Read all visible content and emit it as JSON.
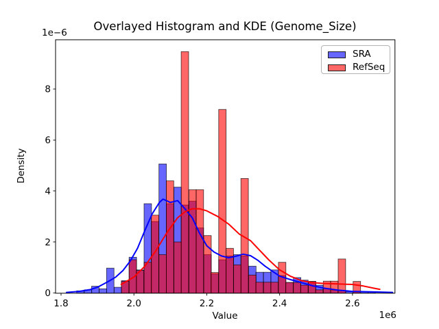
{
  "title": "Overlayed Histogram and KDE (Genome_Size)",
  "axes": {
    "xlabel": "Value",
    "ylabel": "Density",
    "x_offset_label": "1e6",
    "y_offset_label": "1e−6",
    "x_ticks": {
      "values": [
        1.8,
        2.0,
        2.2,
        2.4,
        2.6
      ],
      "labels": [
        "1.8",
        "2.0",
        "2.2",
        "2.4",
        "2.6"
      ]
    },
    "y_ticks": {
      "values": [
        0,
        2,
        4,
        6,
        8
      ],
      "labels": [
        "0",
        "2",
        "4",
        "6",
        "8"
      ]
    },
    "xlim": [
      1.783,
      2.717
    ],
    "ylim": [
      0,
      9.93
    ],
    "grid": false
  },
  "legend": {
    "position": "upper right",
    "items": [
      {
        "label": "SRA",
        "color": "rgba(0,0,255,0.6)"
      },
      {
        "label": "RefSeq",
        "color": "rgba(255,0,0,0.6)"
      }
    ]
  },
  "chart_data": {
    "type": "bar",
    "subtype": "overlaid histogram with KDE curves",
    "title": "Overlayed Histogram and KDE (Genome_Size)",
    "xlabel": "Value",
    "ylabel": "Density",
    "x_unit": "×1e6",
    "y_unit": "×1e-6",
    "bin_width": 0.0205,
    "series": [
      {
        "name": "SRA",
        "bar_fill": "rgba(0,0,255,0.6)",
        "edge_color": "rgba(0,0,0,0.75)",
        "line_color": "#0000ff",
        "bin_centers": [
          1.853,
          1.874,
          1.894,
          1.915,
          1.935,
          1.956,
          1.976,
          1.997,
          2.017,
          2.038,
          2.058,
          2.079,
          2.099,
          2.12,
          2.14,
          2.161,
          2.181,
          2.202,
          2.222,
          2.243,
          2.263,
          2.284,
          2.304,
          2.325,
          2.345,
          2.366,
          2.386,
          2.407,
          2.427,
          2.448,
          2.468,
          2.489,
          2.509,
          2.53,
          2.55,
          2.571,
          2.591,
          2.612,
          2.632,
          2.653
        ],
        "bin_heights": [
          0.08,
          0.12,
          0.26,
          0.16,
          0.97,
          0.22,
          0.48,
          1.4,
          0.9,
          3.5,
          2.8,
          5.06,
          3.5,
          4.15,
          3.45,
          3.6,
          2.55,
          1.5,
          0.75,
          1.3,
          1.45,
          1.5,
          1.45,
          1.05,
          0.81,
          0.81,
          0.9,
          0.68,
          0.41,
          0.6,
          0.5,
          0.45,
          0.3,
          0.17,
          0.1,
          0.08,
          0.05,
          0.05,
          0.05,
          0.04
        ],
        "kde": [
          [
            1.815,
            0.02
          ],
          [
            1.85,
            0.06
          ],
          [
            1.88,
            0.13
          ],
          [
            1.9,
            0.22
          ],
          [
            1.93,
            0.45
          ],
          [
            1.95,
            0.62
          ],
          [
            1.97,
            0.88
          ],
          [
            1.99,
            1.25
          ],
          [
            2.01,
            1.75
          ],
          [
            2.03,
            2.45
          ],
          [
            2.05,
            3.1
          ],
          [
            2.07,
            3.55
          ],
          [
            2.08,
            3.68
          ],
          [
            2.1,
            3.55
          ],
          [
            2.12,
            3.62
          ],
          [
            2.14,
            3.3
          ],
          [
            2.16,
            2.95
          ],
          [
            2.18,
            2.35
          ],
          [
            2.2,
            1.85
          ],
          [
            2.22,
            1.6
          ],
          [
            2.24,
            1.45
          ],
          [
            2.26,
            1.38
          ],
          [
            2.28,
            1.44
          ],
          [
            2.3,
            1.52
          ],
          [
            2.32,
            1.46
          ],
          [
            2.34,
            1.28
          ],
          [
            2.36,
            1.05
          ],
          [
            2.38,
            0.85
          ],
          [
            2.4,
            0.66
          ],
          [
            2.43,
            0.52
          ],
          [
            2.46,
            0.4
          ],
          [
            2.49,
            0.28
          ],
          [
            2.52,
            0.19
          ],
          [
            2.56,
            0.11
          ],
          [
            2.6,
            0.06
          ],
          [
            2.65,
            0.04
          ],
          [
            2.71,
            0.02
          ]
        ]
      },
      {
        "name": "RefSeq",
        "bar_fill": "rgba(255,0,0,0.6)",
        "edge_color": "rgba(0,0,0,0.75)",
        "line_color": "#ff0000",
        "bin_centers": [
          1.976,
          1.997,
          2.017,
          2.038,
          2.058,
          2.079,
          2.099,
          2.12,
          2.14,
          2.161,
          2.181,
          2.202,
          2.222,
          2.243,
          2.263,
          2.284,
          2.304,
          2.325,
          2.345,
          2.366,
          2.386,
          2.407,
          2.427,
          2.448,
          2.468,
          2.489,
          2.509,
          2.53,
          2.55,
          2.571,
          2.591,
          2.612
        ],
        "bin_heights": [
          0.45,
          1.3,
          0.88,
          1.2,
          3.05,
          1.5,
          4.4,
          2.0,
          9.47,
          4.05,
          4.05,
          2.25,
          0.8,
          7.2,
          1.75,
          1.1,
          4.49,
          0.7,
          0.42,
          0.42,
          0.42,
          1.2,
          0.41,
          0.41,
          0.3,
          0.45,
          0.12,
          0.46,
          0.46,
          1.33,
          0.0,
          0.45
        ],
        "kde": [
          [
            1.965,
            0.33
          ],
          [
            2.0,
            0.62
          ],
          [
            2.03,
            1.05
          ],
          [
            2.06,
            1.65
          ],
          [
            2.09,
            2.35
          ],
          [
            2.12,
            2.95
          ],
          [
            2.14,
            3.18
          ],
          [
            2.16,
            3.3
          ],
          [
            2.18,
            3.3
          ],
          [
            2.2,
            3.22
          ],
          [
            2.23,
            3.0
          ],
          [
            2.26,
            2.7
          ],
          [
            2.29,
            2.3
          ],
          [
            2.32,
            2.05
          ],
          [
            2.34,
            1.75
          ],
          [
            2.37,
            1.3
          ],
          [
            2.4,
            0.9
          ],
          [
            2.43,
            0.65
          ],
          [
            2.46,
            0.48
          ],
          [
            2.49,
            0.4
          ],
          [
            2.52,
            0.37
          ],
          [
            2.56,
            0.35
          ],
          [
            2.6,
            0.33
          ],
          [
            2.63,
            0.27
          ],
          [
            2.66,
            0.18
          ],
          [
            2.675,
            0.14
          ]
        ]
      }
    ]
  }
}
